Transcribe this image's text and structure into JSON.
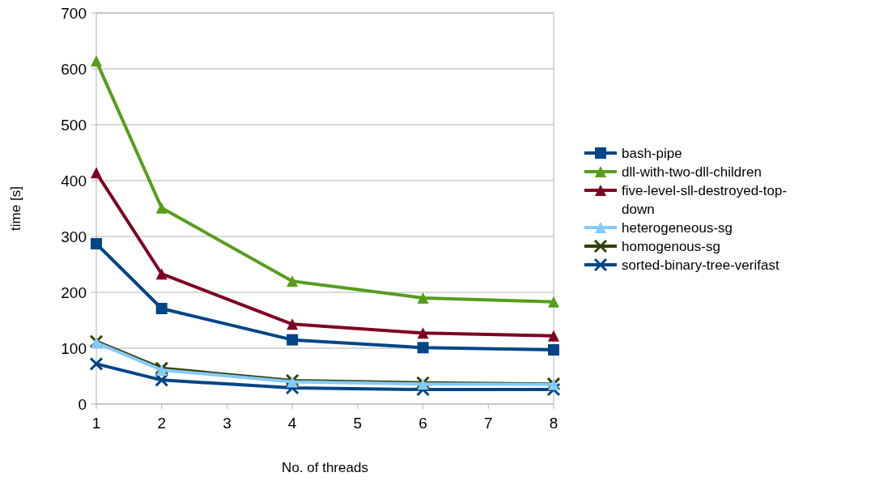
{
  "chart_data": {
    "type": "line",
    "xlabel": "No. of threads",
    "ylabel": "time [s]",
    "x": [
      1,
      2,
      4,
      6,
      8
    ],
    "xlim": [
      1,
      8
    ],
    "xticks": [
      1,
      2,
      3,
      4,
      5,
      6,
      7,
      8
    ],
    "ylim": [
      0,
      700
    ],
    "yticks": [
      0,
      100,
      200,
      300,
      400,
      500,
      600,
      700
    ],
    "grid": "y",
    "legend": "right",
    "line_style": "solid",
    "series": [
      {
        "name": "bash-pipe",
        "color": "#004586",
        "marker": "square",
        "values": [
          287,
          171,
          115,
          101,
          97
        ]
      },
      {
        "name": "dll-with-two-dll-children",
        "color": "#579d1c",
        "marker": "triangle",
        "values": [
          614,
          351,
          220,
          190,
          183
        ]
      },
      {
        "name": "five-level-sll-destroyed-top-down",
        "color": "#7e0021",
        "marker": "triangle",
        "values": [
          414,
          233,
          143,
          127,
          122
        ]
      },
      {
        "name": "heterogeneous-sg",
        "color": "#83caff",
        "marker": "triangle",
        "values": [
          110,
          61,
          40,
          36,
          35
        ]
      },
      {
        "name": "homogenous-sg",
        "color": "#314004",
        "marker": "cross",
        "values": [
          112,
          64,
          42,
          38,
          36
        ]
      },
      {
        "name": "sorted-binary-tree-verifast",
        "color": "#004586",
        "marker": "cross",
        "values": [
          72,
          43,
          29,
          26,
          26
        ]
      }
    ]
  }
}
